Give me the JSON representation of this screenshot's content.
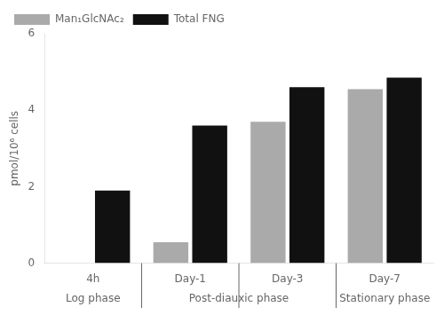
{
  "chart_data": {
    "type": "bar",
    "categories": [
      "4h",
      "Day-1",
      "Day-3",
      "Day-7"
    ],
    "series": [
      {
        "name": "Man₁GlcNAc₂",
        "color": "#aaaaaa",
        "values": [
          0.0,
          0.55,
          3.7,
          4.55
        ]
      },
      {
        "name": "Total FNG",
        "color": "#111111",
        "values": [
          1.9,
          3.6,
          4.6,
          4.85
        ]
      }
    ],
    "ylabel": "pmol/10⁶ cells",
    "ylim": [
      0,
      6
    ],
    "yticks": [
      0,
      2,
      4,
      6
    ],
    "annotations": [
      {
        "text": "Log phase",
        "categories": [
          "4h"
        ]
      },
      {
        "text": "Post-diauxic phase",
        "categories": [
          "Day-1",
          "Day-3"
        ]
      },
      {
        "text": "Stationary phase",
        "categories": [
          "Day-7"
        ]
      }
    ],
    "grid": false,
    "legend": "upper left"
  }
}
